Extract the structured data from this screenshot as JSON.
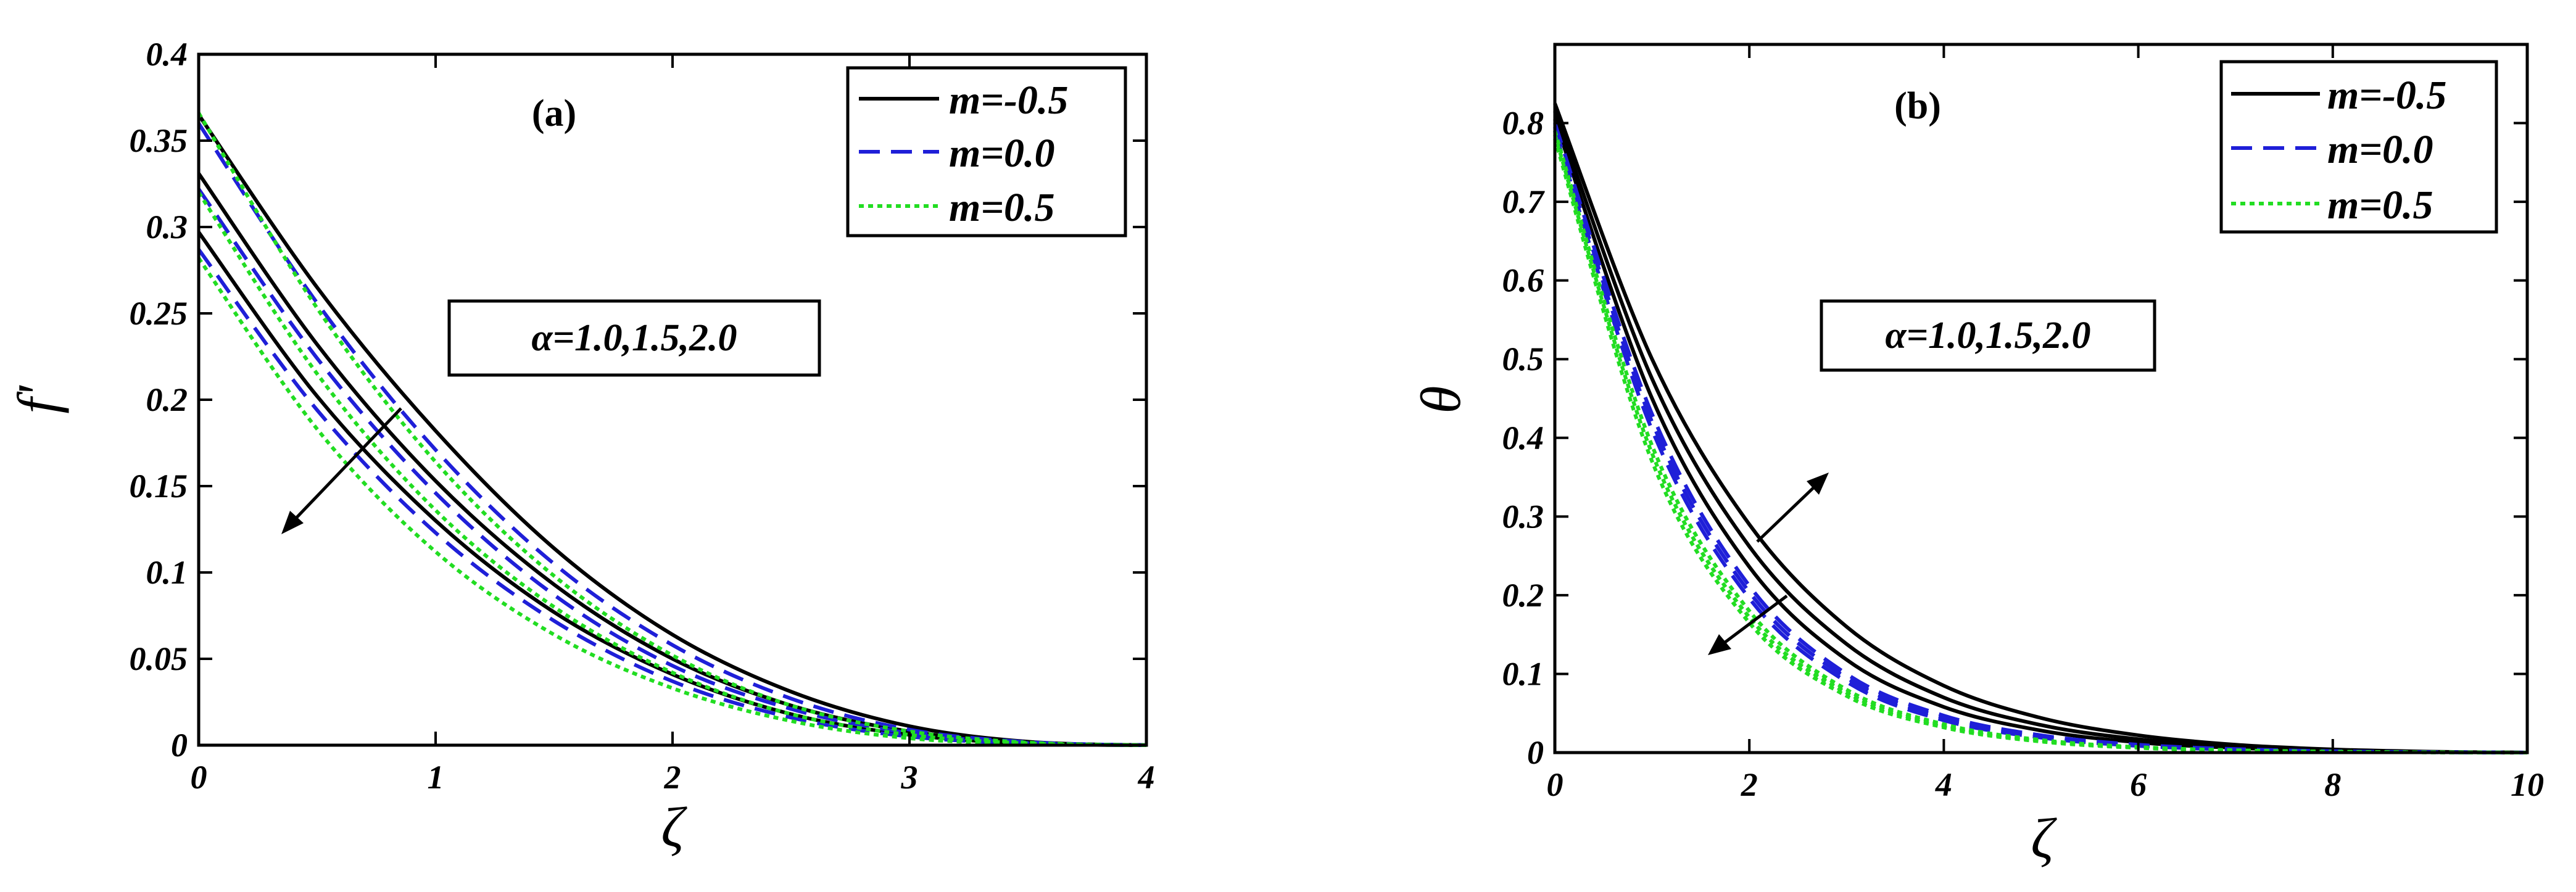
{
  "chart_data": [
    {
      "type": "line",
      "panel_label": "(a)",
      "xlabel": "ζ",
      "ylabel": "f'",
      "xlim": [
        0,
        4
      ],
      "ylim": [
        0,
        0.4
      ],
      "xticks": [
        0,
        1,
        2,
        3,
        4
      ],
      "yticks": [
        0,
        0.05,
        0.1,
        0.15,
        0.2,
        0.25,
        0.3,
        0.35,
        0.4
      ],
      "grid": false,
      "legend_position": "top-right",
      "annotation": "α=1.0,1.5,2.0",
      "x": [
        0,
        0.5,
        1,
        1.5,
        2,
        2.5,
        3,
        3.5,
        4
      ],
      "series": [
        {
          "name": "m=-0.5",
          "style": "solid",
          "color": "#000000",
          "curves": [
            {
              "values": [
                0.365,
                0.265,
                0.182,
                0.114,
                0.064,
                0.031,
                0.011,
                0.002,
                0
              ]
            },
            {
              "values": [
                0.331,
                0.232,
                0.153,
                0.093,
                0.05,
                0.023,
                0.008,
                0.0015,
                0
              ]
            },
            {
              "values": [
                0.297,
                0.202,
                0.13,
                0.077,
                0.041,
                0.018,
                0.006,
                0.001,
                0
              ]
            }
          ]
        },
        {
          "name": "m=0.0",
          "style": "dashed",
          "color": "#1f1fd8",
          "curves": [
            {
              "values": [
                0.36,
                0.256,
                0.171,
                0.105,
                0.058,
                0.027,
                0.009,
                0.0018,
                0
              ]
            },
            {
              "values": [
                0.322,
                0.224,
                0.146,
                0.087,
                0.046,
                0.021,
                0.007,
                0.0013,
                0
              ]
            },
            {
              "values": [
                0.287,
                0.194,
                0.123,
                0.072,
                0.037,
                0.016,
                0.005,
                0.001,
                0
              ]
            }
          ]
        },
        {
          "name": "m=0.5",
          "style": "dotted",
          "color": "#22dd22",
          "curves": [
            {
              "values": [
                0.366,
                0.253,
                0.164,
                0.098,
                0.052,
                0.023,
                0.008,
                0.0015,
                0
              ]
            },
            {
              "values": [
                0.32,
                0.215,
                0.136,
                0.08,
                0.042,
                0.018,
                0.006,
                0.001,
                0
              ]
            },
            {
              "values": [
                0.282,
                0.183,
                0.112,
                0.064,
                0.033,
                0.014,
                0.004,
                0.0008,
                0
              ]
            }
          ]
        }
      ]
    },
    {
      "type": "line",
      "panel_label": "(b)",
      "xlabel": "ζ",
      "ylabel": "θ",
      "xlim": [
        0,
        10
      ],
      "ylim": [
        0,
        0.9
      ],
      "xticks": [
        0,
        2,
        4,
        6,
        8,
        10
      ],
      "yticks": [
        0,
        0.1,
        0.2,
        0.3,
        0.4,
        0.5,
        0.6,
        0.7,
        0.8
      ],
      "grid": false,
      "legend_position": "top-right",
      "annotation": "α=1.0,1.5,2.0",
      "x": [
        0,
        1,
        2,
        3,
        4,
        5,
        6,
        7,
        8,
        9,
        10
      ],
      "series": [
        {
          "name": "m=-0.5",
          "style": "solid",
          "color": "#000000",
          "curves": [
            {
              "values": [
                0.825,
                0.5,
                0.29,
                0.16,
                0.085,
                0.044,
                0.022,
                0.01,
                0.004,
                0.0012,
                0
              ]
            },
            {
              "values": [
                0.815,
                0.475,
                0.262,
                0.138,
                0.07,
                0.035,
                0.017,
                0.008,
                0.003,
                0.0009,
                0
              ]
            },
            {
              "values": [
                0.805,
                0.45,
                0.236,
                0.118,
                0.058,
                0.028,
                0.013,
                0.006,
                0.0025,
                0.0007,
                0
              ]
            }
          ]
        },
        {
          "name": "m=0.0",
          "style": "dashed",
          "color": "#1f1fd8",
          "curves": [
            {
              "values": [
                0.8,
                0.43,
                0.212,
                0.1,
                0.047,
                0.022,
                0.01,
                0.0045,
                0.0018,
                0.0005,
                0
              ]
            },
            {
              "values": [
                0.795,
                0.42,
                0.204,
                0.095,
                0.044,
                0.02,
                0.009,
                0.004,
                0.0016,
                0.0005,
                0
              ]
            },
            {
              "values": [
                0.79,
                0.41,
                0.196,
                0.09,
                0.041,
                0.019,
                0.0085,
                0.0038,
                0.0015,
                0.0004,
                0
              ]
            }
          ]
        },
        {
          "name": "m=0.5",
          "style": "dotted",
          "color": "#22dd22",
          "curves": [
            {
              "values": [
                0.79,
                0.39,
                0.18,
                0.08,
                0.036,
                0.016,
                0.007,
                0.003,
                0.0012,
                0.0003,
                0
              ]
            },
            {
              "values": [
                0.785,
                0.38,
                0.172,
                0.076,
                0.034,
                0.015,
                0.0065,
                0.0028,
                0.0011,
                0.0003,
                0
              ]
            },
            {
              "values": [
                0.78,
                0.37,
                0.165,
                0.072,
                0.032,
                0.014,
                0.006,
                0.0026,
                0.001,
                0.0003,
                0
              ]
            }
          ]
        }
      ]
    }
  ]
}
